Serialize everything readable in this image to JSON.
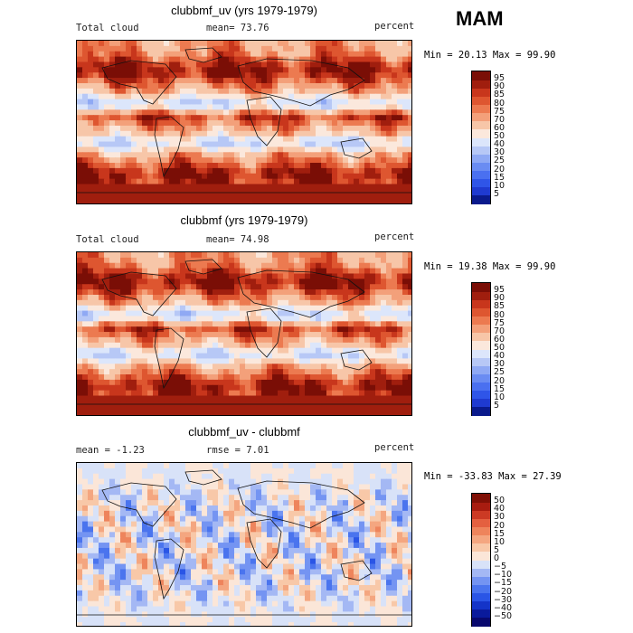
{
  "season": "MAM",
  "chart_data": [
    {
      "type": "heatmap",
      "title": "clubbmf_uv (yrs 1979-1979)",
      "left_label": "Total cloud",
      "center_label": "mean=  73.76",
      "units": "percent",
      "minmax": "Min =  20.13 Max =  99.90",
      "levels": [
        5,
        10,
        15,
        20,
        25,
        30,
        40,
        50,
        60,
        70,
        75,
        80,
        85,
        90,
        95
      ],
      "colors": [
        "#0a1a8c",
        "#1f3ad0",
        "#2f55e8",
        "#4a70f0",
        "#6a8cf2",
        "#8fa9f4",
        "#b7c8f6",
        "#dce6fb",
        "#fbe8dc",
        "#f7c6a8",
        "#f3a07a",
        "#ec7a50",
        "#de5630",
        "#c8361c",
        "#a01e0e",
        "#7a0e06"
      ]
    },
    {
      "type": "heatmap",
      "title": "clubbmf (yrs 1979-1979)",
      "left_label": "Total cloud",
      "center_label": "mean=  74.98",
      "units": "percent",
      "minmax": "Min =  19.38 Max =  99.90",
      "levels": [
        5,
        10,
        15,
        20,
        25,
        30,
        40,
        50,
        60,
        70,
        75,
        80,
        85,
        90,
        95
      ],
      "colors": [
        "#0a1a8c",
        "#1f3ad0",
        "#2f55e8",
        "#4a70f0",
        "#6a8cf2",
        "#8fa9f4",
        "#b7c8f6",
        "#dce6fb",
        "#fbe8dc",
        "#f7c6a8",
        "#f3a07a",
        "#ec7a50",
        "#de5630",
        "#c8361c",
        "#a01e0e",
        "#7a0e06"
      ]
    },
    {
      "type": "heatmap",
      "title": "clubbmf_uv - clubbmf",
      "left_label": "mean =  -1.23",
      "center_label": "rmse =   7.01",
      "units": "percent",
      "minmax": "Min = -33.83 Max =  27.39",
      "levels": [
        -50,
        -40,
        -30,
        -20,
        -15,
        -10,
        -5,
        0,
        5,
        10,
        15,
        20,
        30,
        40,
        50
      ],
      "colors": [
        "#08086e",
        "#0a1a9c",
        "#1434c8",
        "#2a55e6",
        "#4a74ee",
        "#7494f2",
        "#a4b8f4",
        "#d8e2f8",
        "#fbe6d8",
        "#f8c8a8",
        "#f4a680",
        "#ee845c",
        "#e46040",
        "#cc3a24",
        "#a81c10",
        "#801006"
      ]
    }
  ]
}
